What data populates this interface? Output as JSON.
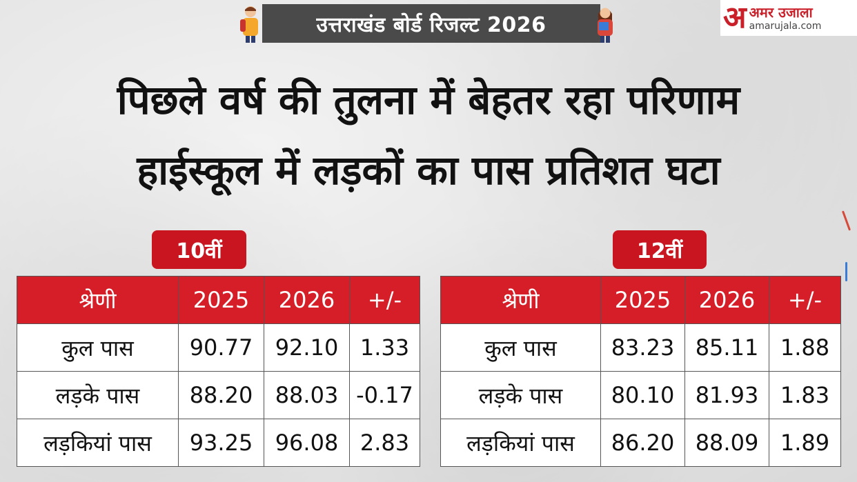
{
  "banner": {
    "title": "उत्तराखंड बोर्ड रिजल्ट 2026"
  },
  "logo": {
    "glyph": "अ",
    "name": "अमर उजाला",
    "url": "amarujala.com"
  },
  "headline": {
    "line1": "पिछले वर्ष की तुलना में बेहतर रहा परिणाम",
    "line2": "हाईस्कूल में लड़कों का पास प्रतिशत घटा"
  },
  "tables": [
    {
      "badge": "10वीं",
      "headers": [
        "श्रेणी",
        "2025",
        "2026",
        "+/-"
      ],
      "rows": [
        [
          "कुल पास",
          "90.77",
          "92.10",
          "1.33"
        ],
        [
          "लड़के पास",
          "88.20",
          "88.03",
          "-0.17"
        ],
        [
          "लड़कियां पास",
          "93.25",
          "96.08",
          "2.83"
        ]
      ]
    },
    {
      "badge": "12वीं",
      "headers": [
        "श्रेणी",
        "2025",
        "2026",
        "+/-"
      ],
      "rows": [
        [
          "कुल पास",
          "83.23",
          "85.11",
          "1.88"
        ],
        [
          "लड़के पास",
          "80.10",
          "81.93",
          "1.83"
        ],
        [
          "लड़कियां पास",
          "86.20",
          "88.09",
          "1.89"
        ]
      ]
    }
  ],
  "colors": {
    "accent": "#d51e27",
    "banner_bg": "#4a4a4a",
    "logo_red": "#c9202a"
  }
}
